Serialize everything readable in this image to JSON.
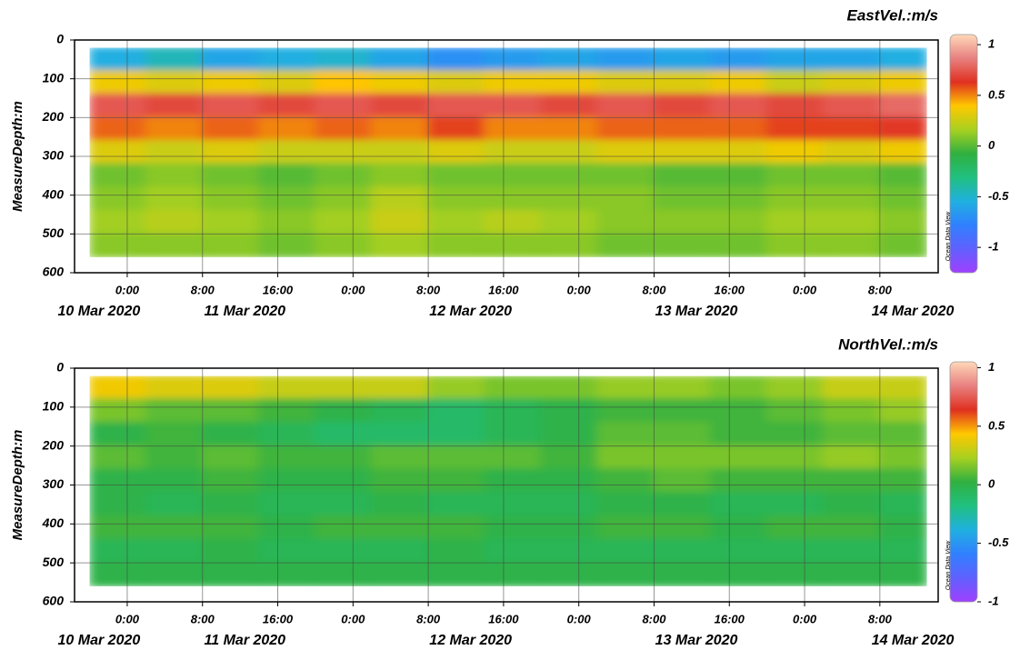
{
  "chart_data": [
    {
      "type": "heatmap",
      "title": "EastVel.:m/s",
      "ylabel": "MeasureDepth:m",
      "watermark": "Ocean Data View",
      "x": [
        "2020-03-10T20:00",
        "2020-03-11T02:00",
        "2020-03-11T08:00",
        "2020-03-11T14:00",
        "2020-03-11T20:00",
        "2020-03-12T02:00",
        "2020-03-12T08:00",
        "2020-03-12T14:00",
        "2020-03-12T20:00",
        "2020-03-13T02:00",
        "2020-03-13T08:00",
        "2020-03-13T14:00",
        "2020-03-13T20:00",
        "2020-03-14T02:00",
        "2020-03-14T08:00",
        "2020-03-14T13:00"
      ],
      "y": [
        20,
        80,
        140,
        200,
        260,
        320,
        380,
        440,
        500,
        560
      ],
      "values": [
        [
          -0.55,
          -0.45,
          -0.6,
          -0.55,
          -0.5,
          -0.6,
          -0.7,
          -0.65,
          -0.6,
          -0.65,
          -0.6,
          -0.65,
          -0.6,
          -0.6,
          -0.55
        ],
        [
          0.35,
          0.3,
          0.35,
          0.3,
          0.4,
          0.35,
          0.3,
          0.35,
          0.35,
          0.3,
          0.3,
          0.35,
          0.25,
          0.3,
          0.35
        ],
        [
          0.75,
          0.7,
          0.75,
          0.7,
          0.75,
          0.7,
          0.75,
          0.75,
          0.7,
          0.75,
          0.7,
          0.75,
          0.7,
          0.75,
          0.8
        ],
        [
          0.55,
          0.5,
          0.55,
          0.5,
          0.55,
          0.5,
          0.6,
          0.5,
          0.5,
          0.55,
          0.55,
          0.55,
          0.6,
          0.6,
          0.65
        ],
        [
          0.3,
          0.25,
          0.3,
          0.25,
          0.25,
          0.25,
          0.3,
          0.25,
          0.25,
          0.3,
          0.3,
          0.3,
          0.35,
          0.3,
          0.35
        ],
        [
          0.05,
          0.1,
          0.05,
          0,
          0.05,
          0.1,
          0.05,
          0.05,
          0.05,
          0.05,
          0,
          0,
          0.05,
          0.05,
          0
        ],
        [
          0.1,
          0.15,
          0.1,
          0.05,
          0.1,
          0.2,
          0.1,
          0.1,
          0.1,
          0.1,
          0.05,
          0.05,
          0.1,
          0.1,
          0.05
        ],
        [
          0.15,
          0.2,
          0.15,
          0.1,
          0.15,
          0.25,
          0.15,
          0.2,
          0.15,
          0.1,
          0.1,
          0.1,
          0.15,
          0.15,
          0.1
        ],
        [
          0.1,
          0.1,
          0.1,
          0.05,
          0.1,
          0.15,
          0.1,
          0.1,
          0.1,
          0.05,
          0.05,
          0.05,
          0.1,
          0.1,
          0.05
        ]
      ],
      "xlim": [
        "2020-03-10T18:24",
        "2020-03-14T14:12"
      ],
      "xticks": [
        {
          "value": "2020-03-11T00:00",
          "label": "0:00"
        },
        {
          "value": "2020-03-11T08:00",
          "label": "8:00"
        },
        {
          "value": "2020-03-11T16:00",
          "label": "16:00"
        },
        {
          "value": "2020-03-12T00:00",
          "label": "0:00"
        },
        {
          "value": "2020-03-12T08:00",
          "label": "8:00"
        },
        {
          "value": "2020-03-12T16:00",
          "label": "16:00"
        },
        {
          "value": "2020-03-13T00:00",
          "label": "0:00"
        },
        {
          "value": "2020-03-13T08:00",
          "label": "8:00"
        },
        {
          "value": "2020-03-13T16:00",
          "label": "16:00"
        },
        {
          "value": "2020-03-14T00:00",
          "label": "0:00"
        },
        {
          "value": "2020-03-14T08:00",
          "label": "8:00"
        }
      ],
      "date_ticks": [
        {
          "value": "2020-03-10T21:00",
          "label": "10 Mar 2020"
        },
        {
          "value": "2020-03-11T12:30",
          "label": "11 Mar 2020"
        },
        {
          "value": "2020-03-12T12:30",
          "label": "12 Mar 2020"
        },
        {
          "value": "2020-03-13T12:30",
          "label": "13 Mar 2020"
        },
        {
          "value": "2020-03-14T11:30",
          "label": "14 Mar 2020"
        }
      ],
      "ylim": [
        0,
        600
      ],
      "yticks": [
        0,
        100,
        200,
        300,
        400,
        500,
        600
      ],
      "zlim": [
        -1.25,
        1.1
      ],
      "zticks": [
        1,
        0.5,
        0,
        -0.5,
        -1
      ],
      "colormap": [
        "#a040ff",
        "#6060ff",
        "#3080ff",
        "#20b0e0",
        "#20c080",
        "#30b040",
        "#a8d020",
        "#ffc800",
        "#e03020",
        "#e88080",
        "#ffd8b8"
      ],
      "grid": true
    },
    {
      "type": "heatmap",
      "title": "NorthVel.:m/s",
      "ylabel": "MeasureDepth:m",
      "watermark": "Ocean Data View",
      "x": [
        "2020-03-10T20:00",
        "2020-03-11T02:00",
        "2020-03-11T08:00",
        "2020-03-11T14:00",
        "2020-03-11T20:00",
        "2020-03-12T02:00",
        "2020-03-12T08:00",
        "2020-03-12T14:00",
        "2020-03-12T20:00",
        "2020-03-13T02:00",
        "2020-03-13T08:00",
        "2020-03-13T14:00",
        "2020-03-13T20:00",
        "2020-03-14T02:00",
        "2020-03-14T08:00",
        "2020-03-14T13:00"
      ],
      "y": [
        20,
        80,
        140,
        200,
        260,
        320,
        380,
        440,
        500,
        560
      ],
      "values": [
        [
          0.4,
          0.35,
          0.35,
          0.3,
          0.3,
          0.3,
          0.2,
          0.15,
          0.15,
          0.2,
          0.2,
          0.15,
          0.2,
          0.3,
          0.3
        ],
        [
          0.15,
          0.1,
          0.1,
          0.05,
          0,
          -0.05,
          -0.1,
          -0.05,
          0,
          0.05,
          0.05,
          0.05,
          0.1,
          0.15,
          0.2
        ],
        [
          0,
          0.05,
          0,
          -0.05,
          -0.1,
          -0.1,
          -0.1,
          -0.05,
          0,
          0.1,
          0.1,
          0.05,
          0.05,
          0.1,
          0.1
        ],
        [
          0.1,
          0.05,
          0.1,
          0.05,
          0.05,
          0.1,
          0.1,
          0.1,
          0.05,
          0.15,
          0.15,
          0.15,
          0.15,
          0.2,
          0.15
        ],
        [
          0,
          0,
          0.05,
          0,
          0,
          0.05,
          0.05,
          0,
          0,
          0.05,
          0.1,
          0.05,
          0.05,
          0.05,
          0.05
        ],
        [
          0,
          -0.05,
          0,
          -0.05,
          -0.05,
          0,
          -0.05,
          -0.05,
          -0.05,
          0,
          0,
          -0.05,
          -0.05,
          0,
          -0.05
        ],
        [
          0.05,
          0.05,
          0.05,
          0,
          0.05,
          0.05,
          0.05,
          0,
          0,
          0.05,
          0.05,
          0,
          0.05,
          0.05,
          0
        ],
        [
          -0.05,
          -0.05,
          0,
          -0.05,
          -0.05,
          -0.05,
          0,
          -0.05,
          -0.05,
          -0.05,
          -0.05,
          -0.05,
          -0.05,
          -0.05,
          -0.05
        ],
        [
          0,
          0,
          0,
          0,
          0,
          0,
          0,
          0,
          0,
          0,
          0,
          0,
          0,
          0,
          0
        ]
      ],
      "xlim": [
        "2020-03-10T18:24",
        "2020-03-14T14:12"
      ],
      "xticks": [
        {
          "value": "2020-03-11T00:00",
          "label": "0:00"
        },
        {
          "value": "2020-03-11T08:00",
          "label": "8:00"
        },
        {
          "value": "2020-03-11T16:00",
          "label": "16:00"
        },
        {
          "value": "2020-03-12T00:00",
          "label": "0:00"
        },
        {
          "value": "2020-03-12T08:00",
          "label": "8:00"
        },
        {
          "value": "2020-03-12T16:00",
          "label": "16:00"
        },
        {
          "value": "2020-03-13T00:00",
          "label": "0:00"
        },
        {
          "value": "2020-03-13T08:00",
          "label": "8:00"
        },
        {
          "value": "2020-03-13T16:00",
          "label": "16:00"
        },
        {
          "value": "2020-03-14T00:00",
          "label": "0:00"
        },
        {
          "value": "2020-03-14T08:00",
          "label": "8:00"
        }
      ],
      "date_ticks": [
        {
          "value": "2020-03-10T21:00",
          "label": "10 Mar 2020"
        },
        {
          "value": "2020-03-11T12:30",
          "label": "11 Mar 2020"
        },
        {
          "value": "2020-03-12T12:30",
          "label": "12 Mar 2020"
        },
        {
          "value": "2020-03-13T12:30",
          "label": "13 Mar 2020"
        },
        {
          "value": "2020-03-14T11:30",
          "label": "14 Mar 2020"
        }
      ],
      "ylim": [
        0,
        600
      ],
      "yticks": [
        0,
        100,
        200,
        300,
        400,
        500,
        600
      ],
      "zlim": [
        -1,
        1.05
      ],
      "zticks": [
        1,
        0.5,
        0,
        -0.5,
        -1
      ],
      "colormap": [
        "#a040ff",
        "#6060ff",
        "#3080ff",
        "#20b0e0",
        "#20c080",
        "#30b040",
        "#a8d020",
        "#ffc800",
        "#e03020",
        "#e88080",
        "#ffd8b8"
      ],
      "grid": true
    }
  ]
}
